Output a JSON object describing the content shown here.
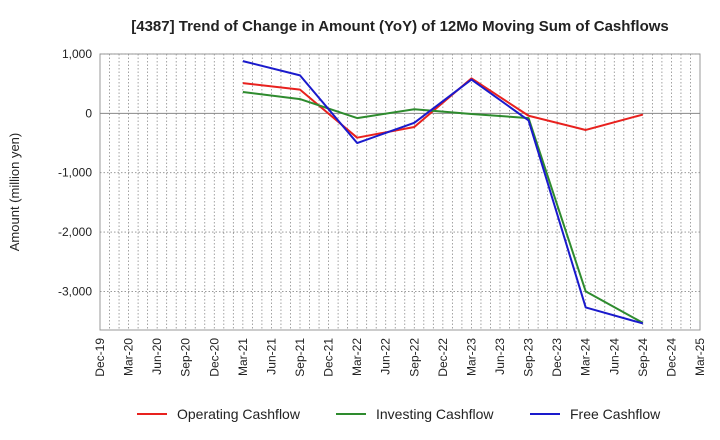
{
  "chart_data": {
    "type": "line",
    "title": "[4387]  Trend of Change in Amount (YoY) of 12Mo Moving Sum of Cashflows",
    "xlabel": "",
    "ylabel": "Amount (million yen)",
    "ylim": [
      -3650,
      1000
    ],
    "yticks": [
      1000,
      0,
      -1000,
      -2000,
      -3000
    ],
    "ytick_labels": [
      "1,000",
      "0",
      "-1,000",
      "-2,000",
      "-3,000"
    ],
    "categories": [
      "Dec-19",
      "Mar-20",
      "Jun-20",
      "Sep-20",
      "Dec-20",
      "Mar-21",
      "Jun-21",
      "Sep-21",
      "Dec-21",
      "Mar-22",
      "Jun-22",
      "Sep-22",
      "Dec-22",
      "Mar-23",
      "Jun-23",
      "Sep-23",
      "Dec-23",
      "Mar-24",
      "Jun-24",
      "Sep-24",
      "Dec-24",
      "Mar-25"
    ],
    "grid": true,
    "legend_position": "bottom",
    "series": [
      {
        "name": "Operating Cashflow",
        "color": "#e8211e",
        "values": [
          null,
          null,
          null,
          null,
          null,
          510,
          null,
          400,
          null,
          -410,
          null,
          -230,
          null,
          590,
          null,
          -40,
          null,
          -280,
          null,
          -20,
          null,
          null
        ]
      },
      {
        "name": "Investing Cashflow",
        "color": "#2e8b2e",
        "values": [
          null,
          null,
          null,
          null,
          null,
          360,
          null,
          240,
          null,
          -80,
          null,
          70,
          null,
          -10,
          null,
          -80,
          null,
          -3000,
          null,
          -3530,
          null,
          null
        ]
      },
      {
        "name": "Free Cashflow",
        "color": "#1a1acc",
        "values": [
          null,
          null,
          null,
          null,
          null,
          880,
          null,
          640,
          null,
          -500,
          null,
          -160,
          null,
          570,
          null,
          -120,
          null,
          -3270,
          null,
          -3540,
          null,
          null
        ]
      }
    ]
  }
}
